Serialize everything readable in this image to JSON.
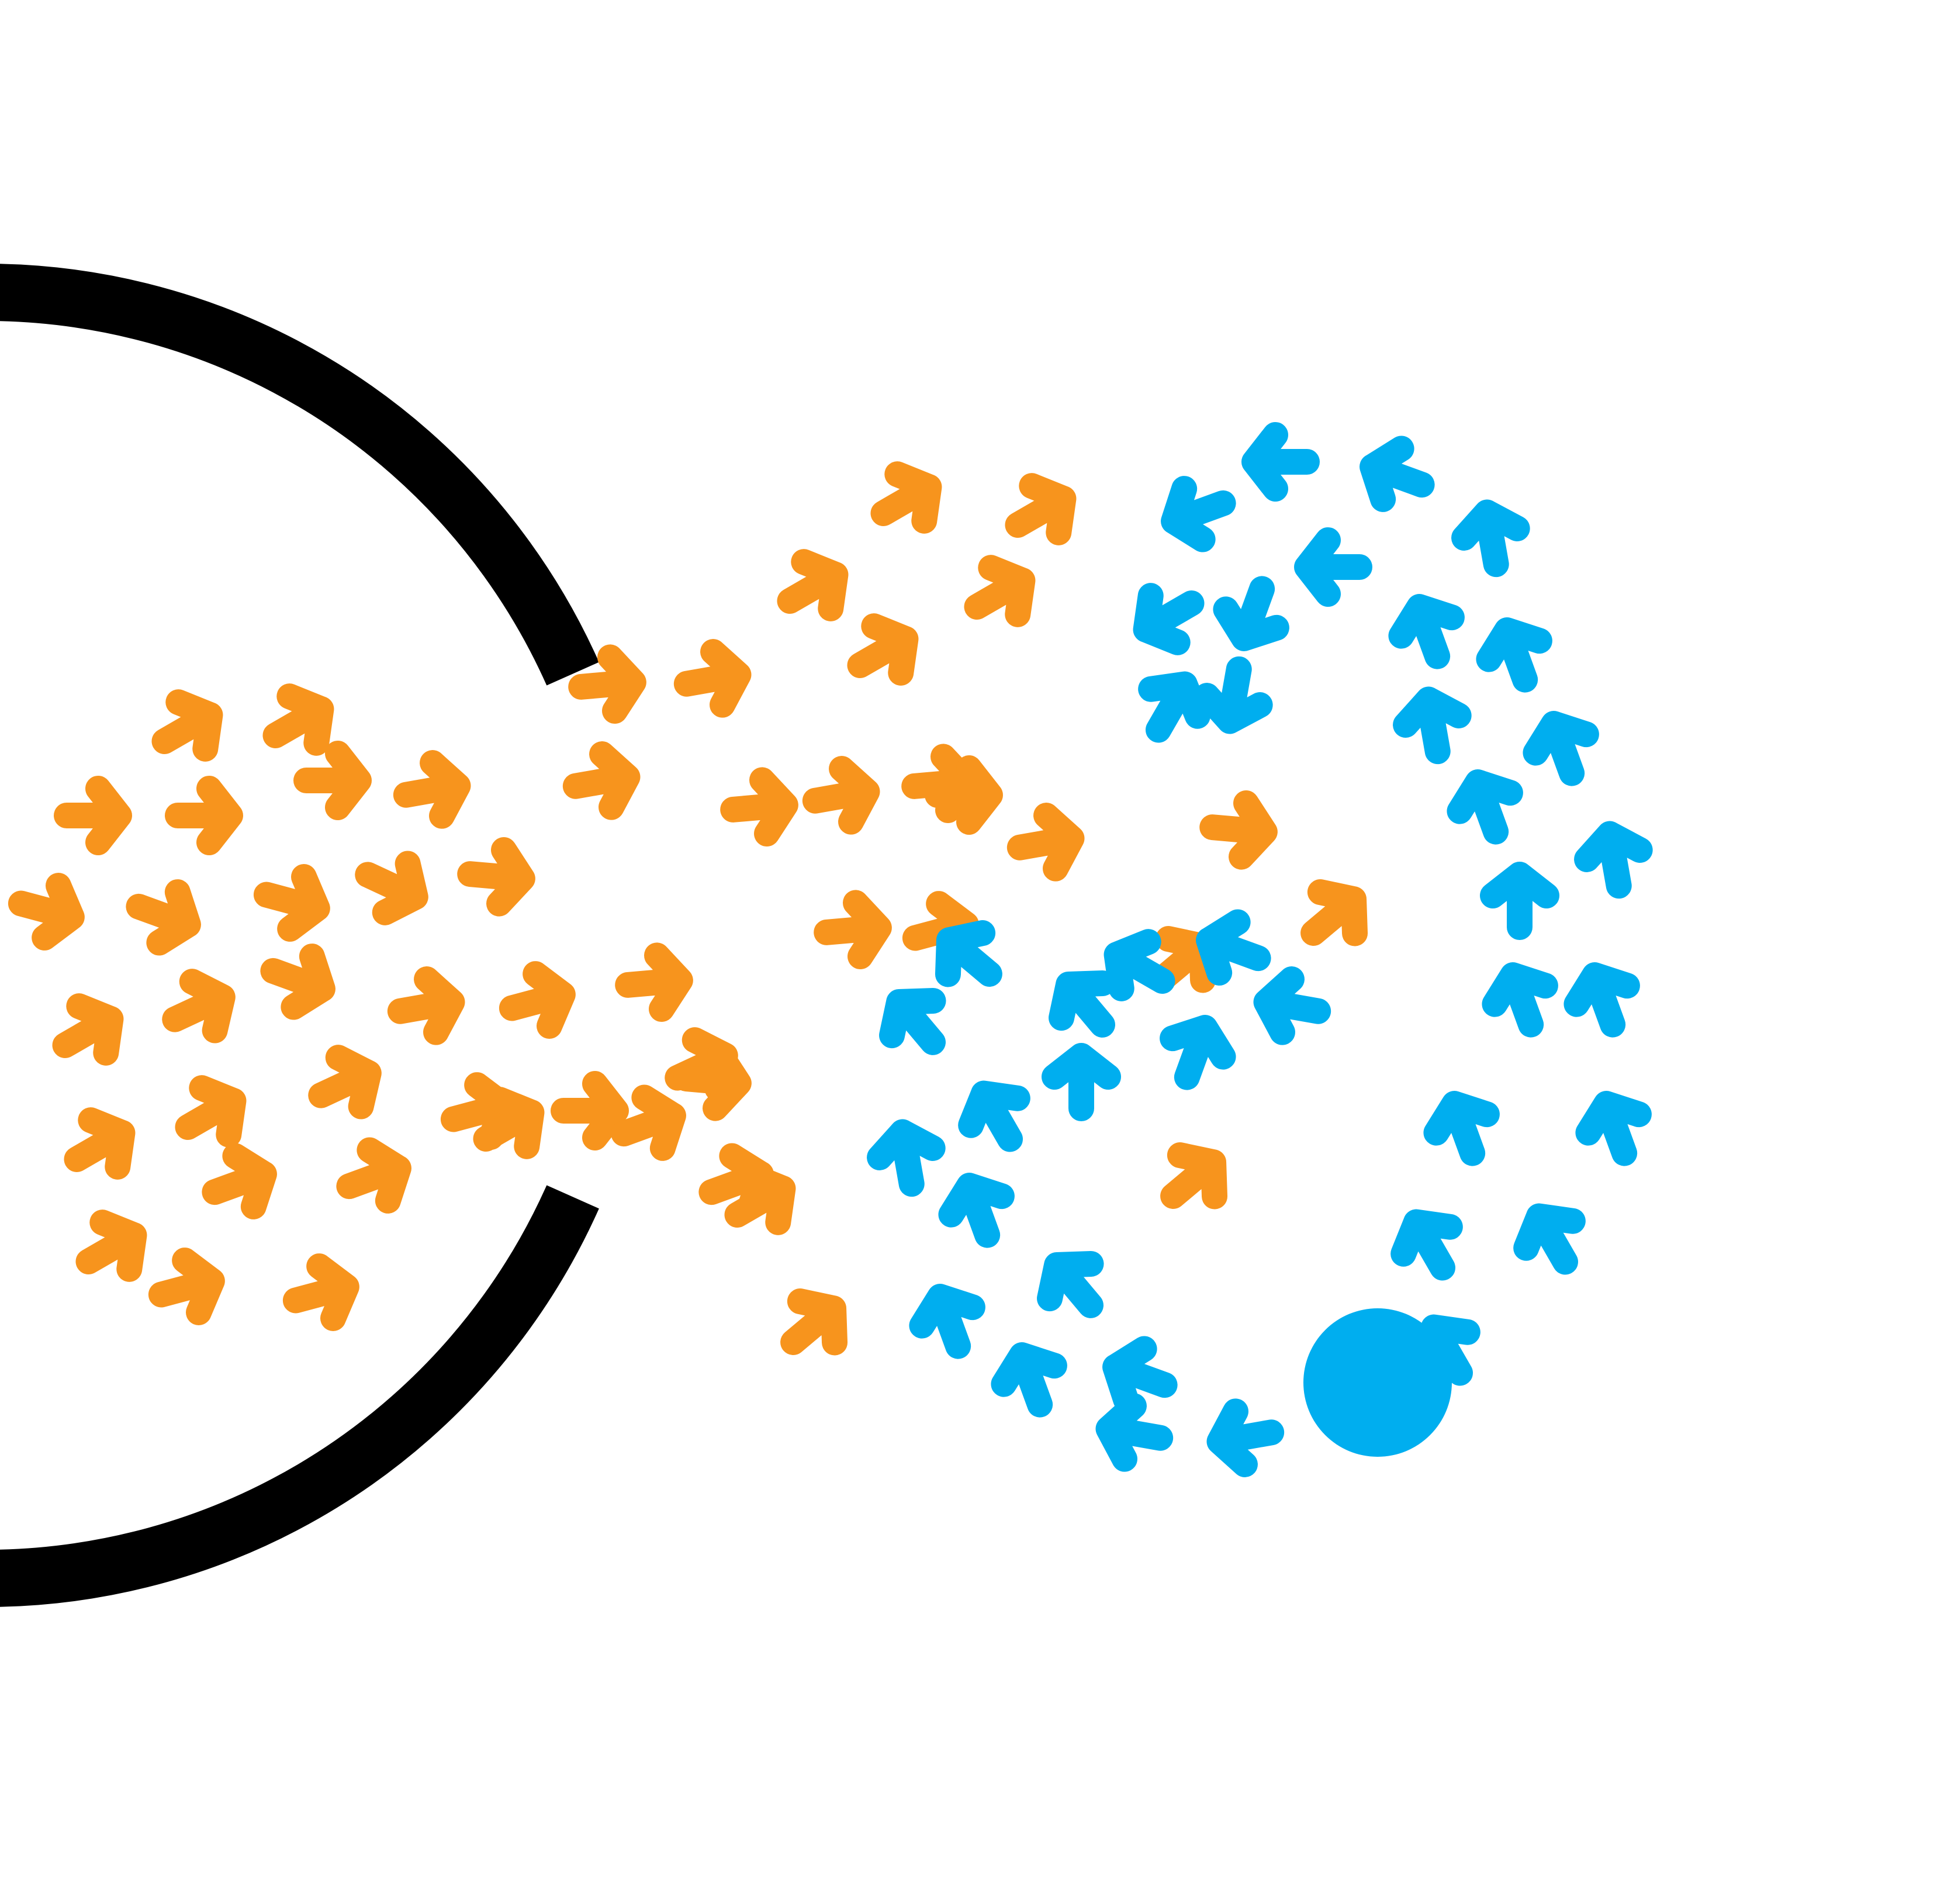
{
  "colors": {
    "background": "#ffffff",
    "ring": "#000000",
    "incoming_arrows": "#f7941d",
    "inner_arrows": "#00aeef",
    "core_dot": "#00aeef"
  },
  "icons": {
    "ring": "open-ring-icon",
    "incoming_arrow": "chevron-arrow-icon",
    "inner_arrow": "chevron-arrow-icon",
    "core": "filled-circle-icon"
  }
}
